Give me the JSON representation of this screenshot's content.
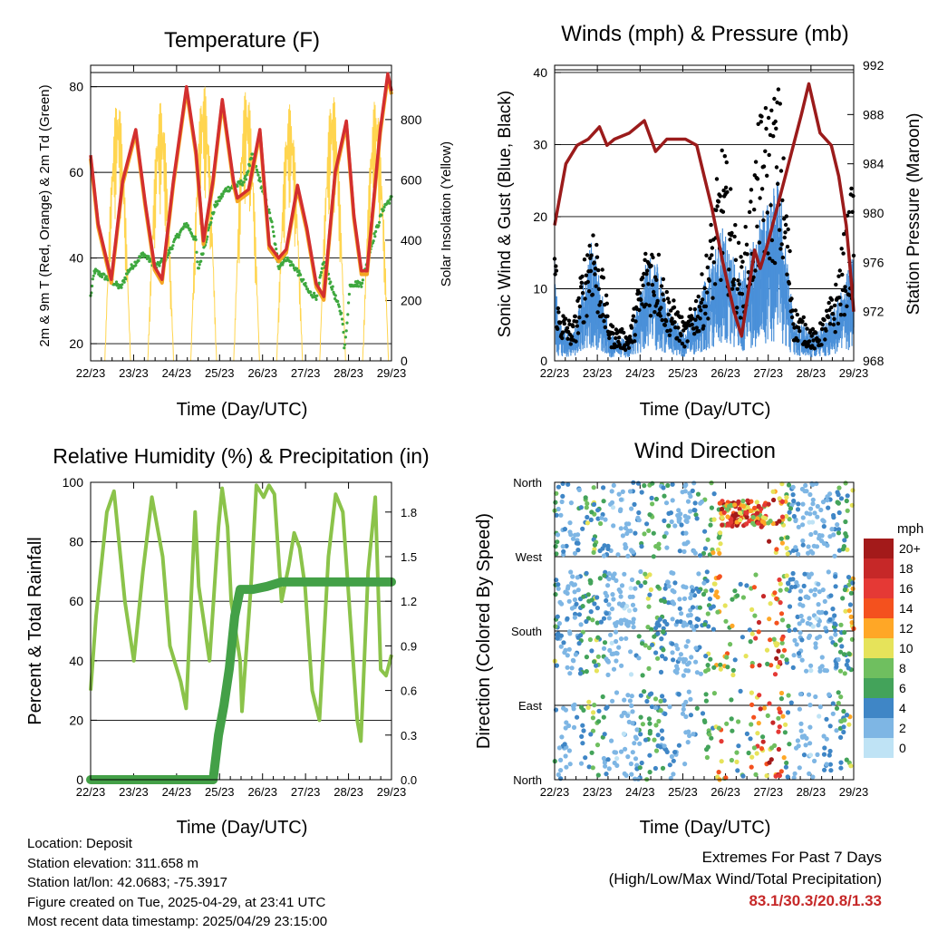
{
  "chart_data": [
    {
      "type": "line",
      "title": "Temperature (F)",
      "xlabel": "Time (Day/UTC)",
      "ylabel": "2m & 9m T (Red, Orange) & 2m Td (Green)",
      "y2label": "Solar Insolation (Yellow)",
      "x_ticks": [
        "22/23",
        "23/23",
        "24/23",
        "25/23",
        "26/23",
        "27/23",
        "28/23",
        "29/23"
      ],
      "ylim": [
        16,
        85
      ],
      "y_ticks": [
        20,
        40,
        60,
        80
      ],
      "y2lim": [
        0,
        980
      ],
      "y2_ticks": [
        0,
        200,
        400,
        600,
        800
      ],
      "grid": "horizontal",
      "colors": {
        "temp2m": "#d32f2f",
        "temp9m": "#f5a623",
        "dewpoint": "#3ea83e",
        "solar": "#ffd54f"
      },
      "series": [
        {
          "name": "2m T",
          "points": [
            [
              0,
              64
            ],
            [
              0.2,
              48
            ],
            [
              0.55,
              35
            ],
            [
              0.85,
              58
            ],
            [
              1.2,
              70
            ],
            [
              1.45,
              53
            ],
            [
              1.7,
              38
            ],
            [
              1.9,
              35
            ],
            [
              2.2,
              58
            ],
            [
              2.55,
              80
            ],
            [
              2.8,
              65
            ],
            [
              3.0,
              44
            ],
            [
              3.25,
              58
            ],
            [
              3.5,
              77
            ],
            [
              3.8,
              58
            ],
            [
              3.9,
              54
            ],
            [
              4.2,
              56
            ],
            [
              4.5,
              70
            ],
            [
              4.75,
              43
            ],
            [
              5.0,
              40
            ],
            [
              5.2,
              42
            ],
            [
              5.5,
              57
            ],
            [
              5.75,
              47
            ],
            [
              6.0,
              34
            ],
            [
              6.2,
              31
            ],
            [
              6.5,
              60
            ],
            [
              6.8,
              72
            ],
            [
              7.0,
              50
            ],
            [
              7.2,
              37
            ],
            [
              7.35,
              37
            ],
            [
              7.7,
              70
            ],
            [
              7.9,
              83
            ],
            [
              8.0,
              79
            ]
          ]
        },
        {
          "name": "2m Td",
          "points": [
            [
              0,
              31
            ],
            [
              0.1,
              37
            ],
            [
              0.5,
              35
            ],
            [
              0.8,
              33
            ],
            [
              1.0,
              37
            ],
            [
              1.4,
              41
            ],
            [
              1.75,
              38
            ],
            [
              2.0,
              40
            ],
            [
              2.3,
              45
            ],
            [
              2.55,
              48
            ],
            [
              2.8,
              44
            ],
            [
              2.85,
              37
            ],
            [
              3.0,
              42
            ],
            [
              3.3,
              52
            ],
            [
              3.6,
              56
            ],
            [
              3.9,
              57
            ],
            [
              4.1,
              58
            ],
            [
              4.3,
              64
            ],
            [
              4.6,
              55
            ],
            [
              4.8,
              49
            ],
            [
              5.0,
              38
            ],
            [
              5.2,
              40
            ],
            [
              5.5,
              37
            ],
            [
              5.8,
              32
            ],
            [
              6.0,
              31
            ],
            [
              6.2,
              39
            ],
            [
              6.5,
              31
            ],
            [
              6.7,
              26
            ],
            [
              6.75,
              18
            ],
            [
              6.9,
              34
            ],
            [
              7.2,
              34
            ],
            [
              7.5,
              44
            ],
            [
              7.8,
              52
            ],
            [
              8.0,
              54
            ]
          ]
        }
      ],
      "solar_series": {
        "name": "Solar Insolation",
        "peaks": [
          870,
          860,
          920,
          910,
          850,
          890,
          870,
          900,
          880,
          860
        ]
      }
    },
    {
      "type": "scatter",
      "title": "Winds (mph) & Pressure (mb)",
      "xlabel": "Time (Day/UTC)",
      "ylabel": "Sonic Wind & Gust (Blue, Black)",
      "y2label": "Station Pressure (Maroon)",
      "x_ticks": [
        "22/23",
        "23/23",
        "24/23",
        "25/23",
        "26/23",
        "27/23",
        "28/23",
        "29/23"
      ],
      "ylim": [
        0,
        41
      ],
      "y_ticks": [
        0,
        10,
        20,
        30,
        40
      ],
      "y2lim": [
        968,
        992
      ],
      "y2_ticks": [
        968,
        972,
        976,
        980,
        984,
        988,
        992
      ],
      "grid": "horizontal",
      "colors": {
        "wind": "#4a90d9",
        "gust": "#000000",
        "pressure": "#9b1b1b"
      },
      "series": [
        {
          "name": "Pressure",
          "points": [
            [
              0,
              979
            ],
            [
              0.3,
              984
            ],
            [
              0.6,
              985.5
            ],
            [
              0.9,
              986
            ],
            [
              1.2,
              987
            ],
            [
              1.4,
              985.5
            ],
            [
              1.6,
              986
            ],
            [
              2.0,
              986.5
            ],
            [
              2.4,
              987.5
            ],
            [
              2.7,
              985
            ],
            [
              3.0,
              986
            ],
            [
              3.2,
              986
            ],
            [
              3.5,
              986
            ],
            [
              3.8,
              985.5
            ],
            [
              4.0,
              983
            ],
            [
              4.2,
              980.5
            ],
            [
              4.5,
              976
            ],
            [
              4.8,
              972
            ],
            [
              5.0,
              970
            ],
            [
              5.2,
              974
            ],
            [
              5.35,
              977
            ],
            [
              5.5,
              975.5
            ],
            [
              5.7,
              977.5
            ],
            [
              6.0,
              981
            ],
            [
              6.3,
              984.5
            ],
            [
              6.6,
              988
            ],
            [
              6.8,
              990.5
            ],
            [
              7.1,
              986.5
            ],
            [
              7.4,
              985.5
            ],
            [
              7.6,
              983
            ],
            [
              7.8,
              979
            ],
            [
              7.95,
              974
            ],
            [
              8.0,
              972
            ]
          ]
        },
        {
          "name": "Wind",
          "points": [
            [
              0,
              8
            ],
            [
              0.1,
              3
            ],
            [
              0.5,
              2
            ],
            [
              1.0,
              9
            ],
            [
              1.5,
              2
            ],
            [
              2.0,
              1.5
            ],
            [
              2.5,
              8
            ],
            [
              2.8,
              7
            ],
            [
              3.0,
              4
            ],
            [
              3.5,
              2
            ],
            [
              4.0,
              6
            ],
            [
              4.5,
              10
            ],
            [
              5.0,
              6
            ],
            [
              5.5,
              11
            ],
            [
              6.0,
              14
            ],
            [
              6.4,
              3
            ],
            [
              7.0,
              2
            ],
            [
              7.5,
              4
            ],
            [
              8.0,
              8
            ]
          ]
        },
        {
          "name": "Gust",
          "points": [
            [
              0,
              15
            ],
            [
              0.1,
              6
            ],
            [
              0.5,
              4
            ],
            [
              1.0,
              17
            ],
            [
              1.5,
              4
            ],
            [
              2.0,
              3
            ],
            [
              2.5,
              14
            ],
            [
              2.8,
              12
            ],
            [
              3.0,
              8
            ],
            [
              3.5,
              4
            ],
            [
              4.0,
              10
            ],
            [
              4.5,
              24
            ],
            [
              5.0,
              11
            ],
            [
              5.5,
              27
            ],
            [
              6.0,
              30
            ],
            [
              6.4,
              6
            ],
            [
              7.0,
              3
            ],
            [
              7.5,
              8
            ],
            [
              8.0,
              20
            ]
          ]
        }
      ]
    },
    {
      "type": "line",
      "title": "Relative Humidity (%) & Precipitation (in)",
      "xlabel": "Time (Day/UTC)",
      "ylabel": "Percent & Total Rainfall",
      "x_ticks": [
        "22/23",
        "23/23",
        "24/23",
        "25/23",
        "26/23",
        "27/23",
        "28/23",
        "29/23"
      ],
      "ylim": [
        0,
        100
      ],
      "y_ticks": [
        0,
        20,
        40,
        60,
        80,
        100
      ],
      "y2lim": [
        0,
        2.0
      ],
      "y2_ticks": [
        "0.0",
        "0.3",
        "0.6",
        "0.9",
        "1.2",
        "1.5",
        "1.8"
      ],
      "grid": "horizontal",
      "colors": {
        "humidity": "#8bc34a",
        "precip": "#43a047"
      },
      "series": [
        {
          "name": "Relative Humidity",
          "points": [
            [
              0,
              30
            ],
            [
              0.15,
              55
            ],
            [
              0.45,
              90
            ],
            [
              0.65,
              97
            ],
            [
              0.95,
              60
            ],
            [
              1.2,
              40
            ],
            [
              1.45,
              70
            ],
            [
              1.7,
              95
            ],
            [
              2.0,
              75
            ],
            [
              2.2,
              45
            ],
            [
              2.5,
              33
            ],
            [
              2.65,
              24
            ],
            [
              2.9,
              90
            ],
            [
              3.0,
              65
            ],
            [
              3.3,
              40
            ],
            [
              3.55,
              85
            ],
            [
              3.65,
              98
            ],
            [
              3.8,
              85
            ],
            [
              3.9,
              60
            ],
            [
              4.15,
              40
            ],
            [
              4.2,
              23
            ],
            [
              4.45,
              65
            ],
            [
              4.6,
              99
            ],
            [
              4.8,
              95
            ],
            [
              4.95,
              99
            ],
            [
              5.1,
              96
            ],
            [
              5.3,
              60
            ],
            [
              5.5,
              72
            ],
            [
              5.65,
              83
            ],
            [
              5.8,
              78
            ],
            [
              5.95,
              65
            ],
            [
              6.15,
              30
            ],
            [
              6.35,
              20
            ],
            [
              6.6,
              75
            ],
            [
              6.8,
              96
            ],
            [
              7.0,
              90
            ],
            [
              7.2,
              55
            ],
            [
              7.4,
              20
            ],
            [
              7.5,
              13
            ],
            [
              7.7,
              70
            ],
            [
              7.9,
              95
            ],
            [
              8.05,
              37
            ],
            [
              8.2,
              35
            ],
            [
              8.35,
              42
            ]
          ]
        },
        {
          "name": "Precipitation",
          "points": [
            [
              0,
              0
            ],
            [
              3.4,
              0
            ],
            [
              3.55,
              0.3
            ],
            [
              3.7,
              0.5
            ],
            [
              3.85,
              0.75
            ],
            [
              4.0,
              1.1
            ],
            [
              4.15,
              1.28
            ],
            [
              4.5,
              1.28
            ],
            [
              4.9,
              1.3
            ],
            [
              5.3,
              1.33
            ],
            [
              8.35,
              1.33
            ]
          ]
        }
      ]
    },
    {
      "type": "scatter",
      "title": "Wind Direction",
      "xlabel": "Time (Day/UTC)",
      "ylabel": "Direction (Colored By Speed)",
      "x_ticks": [
        "22/23",
        "23/23",
        "24/23",
        "25/23",
        "26/23",
        "27/23",
        "28/23",
        "29/23"
      ],
      "y_ticks": [
        "North",
        "West",
        "South",
        "East",
        "North"
      ],
      "grid": "horizontal",
      "legend": {
        "title": "mph",
        "labels": [
          "20+",
          "18",
          "16",
          "14",
          "12",
          "10",
          "8",
          "6",
          "4",
          "2",
          "0"
        ],
        "colors": [
          "#a31a1a",
          "#c62828",
          "#e53935",
          "#f4511e",
          "#ffa726",
          "#e6e35a",
          "#6fbf5f",
          "#43a35a",
          "#3f86c6",
          "#7eb6e4",
          "#bfe3f5"
        ]
      }
    }
  ],
  "info": {
    "location": "Location: Deposit",
    "elevation": "Station elevation: 311.658 m",
    "latlon": "Station lat/lon: 42.0683; -75.3917",
    "created": "Figure created on Tue, 2025-04-29, at 23:41 UTC",
    "recent": "Most recent data timestamp: 2025/04/29 23:15:00"
  },
  "extremes": {
    "title": "Extremes For Past 7 Days",
    "subtitle": "(High/Low/Max Wind/Total Precipitation)",
    "values": "83.1/30.3/20.8/1.33"
  }
}
